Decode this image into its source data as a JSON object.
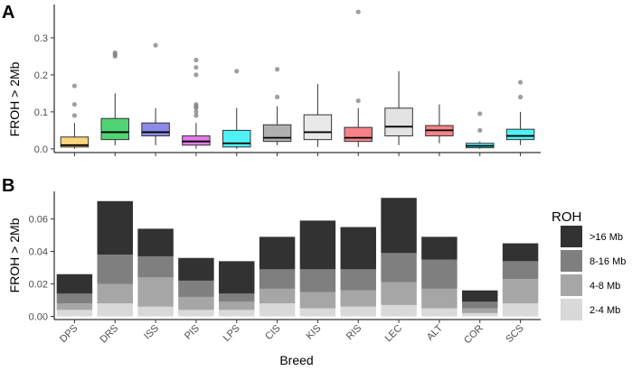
{
  "chart_data": [
    {
      "panel": "A",
      "type": "box",
      "ylabel": "FROH > 2Mb",
      "yticks": [
        "0.0",
        "0.1",
        "0.2",
        "0.3"
      ],
      "ylim": [
        -0.01,
        0.39
      ],
      "categories": [
        "DPS",
        "DRS",
        "ISS",
        "PIS",
        "LPS",
        "CIS",
        "KIS",
        "RIS",
        "LEC",
        "ALT",
        "COR",
        "SCS"
      ],
      "boxes": [
        {
          "breed": "DPS",
          "color": "#f8d57e",
          "min": 0.0,
          "q1": 0.005,
          "median": 0.01,
          "q3": 0.032,
          "max": 0.07,
          "outliers": [
            0.17,
            0.12,
            0.09
          ]
        },
        {
          "breed": "DRS",
          "color": "#4fd473",
          "min": 0.01,
          "q1": 0.025,
          "median": 0.045,
          "q3": 0.082,
          "max": 0.15,
          "outliers": [
            0.26,
            0.255,
            0.25
          ]
        },
        {
          "breed": "ISS",
          "color": "#8b8be8",
          "min": 0.01,
          "q1": 0.035,
          "median": 0.045,
          "q3": 0.07,
          "max": 0.11,
          "outliers": [
            0.28
          ]
        },
        {
          "breed": "PIS",
          "color": "#e27ae6",
          "min": 0.0,
          "q1": 0.01,
          "median": 0.02,
          "q3": 0.035,
          "max": 0.07,
          "outliers": [
            0.24,
            0.22,
            0.2,
            0.12,
            0.115,
            0.11,
            0.1,
            0.09
          ]
        },
        {
          "breed": "LPS",
          "color": "#4ff2f4",
          "min": 0.0,
          "q1": 0.005,
          "median": 0.015,
          "q3": 0.05,
          "max": 0.11,
          "outliers": [
            0.21
          ]
        },
        {
          "breed": "CIS",
          "color": "#b0b0b0",
          "min": 0.01,
          "q1": 0.02,
          "median": 0.03,
          "q3": 0.065,
          "max": 0.115,
          "outliers": [
            0.215,
            0.14
          ]
        },
        {
          "breed": "KIS",
          "color": "#e8e8e8",
          "min": 0.005,
          "q1": 0.025,
          "median": 0.045,
          "q3": 0.092,
          "max": 0.175,
          "outliers": []
        },
        {
          "breed": "RIS",
          "color": "#f48288",
          "min": 0.005,
          "q1": 0.02,
          "median": 0.03,
          "q3": 0.058,
          "max": 0.11,
          "outliers": [
            0.37,
            0.13
          ]
        },
        {
          "breed": "LEC",
          "color": "#e3e3e3",
          "min": 0.01,
          "q1": 0.035,
          "median": 0.06,
          "q3": 0.11,
          "max": 0.21,
          "outliers": []
        },
        {
          "breed": "ALT",
          "color": "#f48288",
          "min": 0.015,
          "q1": 0.035,
          "median": 0.05,
          "q3": 0.063,
          "max": 0.12,
          "outliers": []
        },
        {
          "breed": "COR",
          "color": "#4ff2f4",
          "min": 0.0,
          "q1": 0.003,
          "median": 0.008,
          "q3": 0.015,
          "max": 0.02,
          "outliers": [
            0.095,
            0.05
          ]
        },
        {
          "breed": "SCS",
          "color": "#4ff2f4",
          "min": 0.01,
          "q1": 0.025,
          "median": 0.035,
          "q3": 0.053,
          "max": 0.1,
          "outliers": [
            0.18,
            0.14
          ]
        }
      ]
    },
    {
      "panel": "B",
      "type": "stacked-bar",
      "ylabel": "FROH > 2Mb",
      "xlabel": "Breed",
      "yticks": [
        "0.00",
        "0.02",
        "0.04",
        "0.06"
      ],
      "ylim": [
        0,
        0.077
      ],
      "categories": [
        "DPS",
        "DRS",
        "ISS",
        "PIS",
        "LPS",
        "CIS",
        "KIS",
        "RIS",
        "LEC",
        "ALT",
        "COR",
        "SCS"
      ],
      "legend_title": "ROH",
      "series": [
        {
          "name": "2-4 Mb",
          "color": "#d9d9d9",
          "values": [
            0.004,
            0.008,
            0.006,
            0.004,
            0.004,
            0.008,
            0.005,
            0.006,
            0.007,
            0.005,
            0.002,
            0.008
          ]
        },
        {
          "name": "4-8 Mb",
          "color": "#a6a6a6",
          "values": [
            0.004,
            0.012,
            0.018,
            0.008,
            0.005,
            0.009,
            0.01,
            0.01,
            0.014,
            0.012,
            0.003,
            0.015
          ]
        },
        {
          "name": "8-16 Mb",
          "color": "#7f7f7f",
          "values": [
            0.006,
            0.018,
            0.013,
            0.01,
            0.005,
            0.012,
            0.014,
            0.013,
            0.018,
            0.018,
            0.004,
            0.011
          ]
        },
        {
          "name": ">16 Mb",
          "color": "#323232",
          "values": [
            0.012,
            0.033,
            0.017,
            0.014,
            0.02,
            0.02,
            0.03,
            0.026,
            0.034,
            0.014,
            0.007,
            0.011
          ]
        }
      ]
    }
  ]
}
